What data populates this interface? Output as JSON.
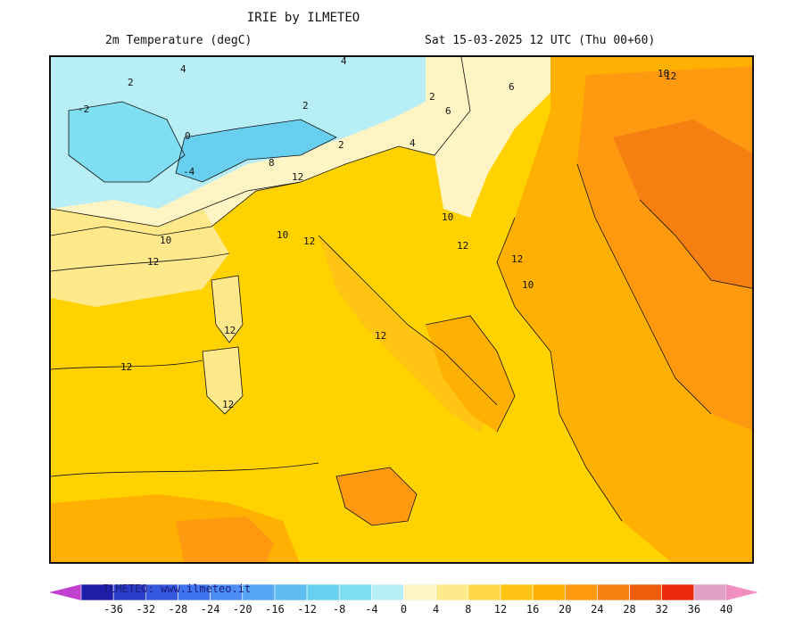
{
  "header": {
    "title": "IRIE by ILMETEO",
    "field": "2m Temperature (degC)",
    "valid_time": "Sat 15-03-2025 12 UTC (Thu 00+60)"
  },
  "credit": "ILMETEO: www.ilmeteo.it",
  "contour_labels": [
    "2",
    "4",
    "-2",
    "-4",
    "0",
    "6",
    "8",
    "10",
    "12"
  ],
  "colorbar": {
    "ticks": [
      "-36",
      "-32",
      "-28",
      "-24",
      "-20",
      "-16",
      "-12",
      "-8",
      "-4",
      "0",
      "4",
      "8",
      "12",
      "16",
      "20",
      "24",
      "28",
      "32",
      "36",
      "40"
    ],
    "colors": [
      "#1e1ea8",
      "#2a3cc8",
      "#3558de",
      "#3f74ee",
      "#4c8ef4",
      "#57a6f4",
      "#5fbcf0",
      "#69cff0",
      "#80def2",
      "#b8eef5",
      "#fff4c4",
      "#ffe98a",
      "#ffd84a",
      "#ffc414",
      "#ffb000",
      "#ff9a10",
      "#f57f10",
      "#ef5c0c",
      "#ea2a0a",
      "#e0a0c8"
    ],
    "under_color": "#c040d0",
    "over_color": "#f090c0"
  }
}
